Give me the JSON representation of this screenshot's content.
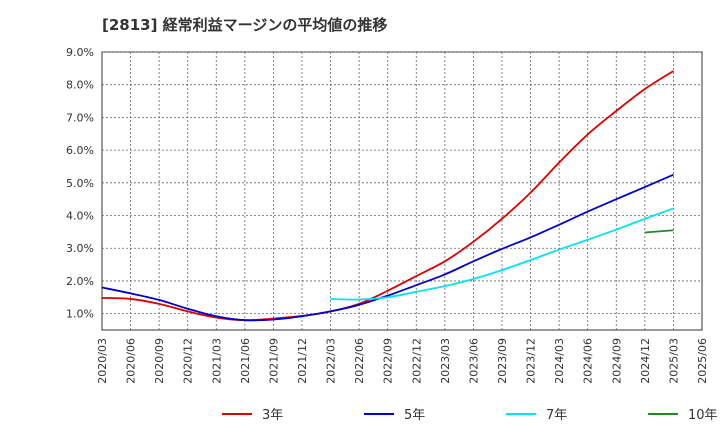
{
  "chart_data": {
    "type": "line",
    "title": "[2813]  経常利益マージンの平均値の推移",
    "xlabel": "",
    "ylabel": "",
    "y_ticks": [
      "1.0%",
      "2.0%",
      "3.0%",
      "4.0%",
      "5.0%",
      "6.0%",
      "7.0%",
      "8.0%",
      "9.0%"
    ],
    "ylim": [
      0.5,
      9.0
    ],
    "x_ticks": [
      "2020/03",
      "2020/06",
      "2020/09",
      "2020/12",
      "2021/03",
      "2021/06",
      "2021/09",
      "2021/12",
      "2022/03",
      "2022/06",
      "2022/09",
      "2022/12",
      "2023/03",
      "2023/06",
      "2023/09",
      "2023/12",
      "2024/03",
      "2024/06",
      "2024/09",
      "2024/12",
      "2025/03",
      "2025/06"
    ],
    "grid": true,
    "legend_position": "bottom",
    "series": [
      {
        "name": "3年",
        "color": "#dd0000",
        "x": [
          "2020/03",
          "2020/06",
          "2020/09",
          "2020/12",
          "2021/03",
          "2021/06",
          "2021/09",
          "2021/12",
          "2022/03",
          "2022/06",
          "2022/09",
          "2022/12",
          "2023/03",
          "2023/06",
          "2023/09",
          "2023/12",
          "2024/03",
          "2024/06",
          "2024/09",
          "2024/12",
          "2025/03"
        ],
        "values": [
          1.48,
          1.45,
          1.3,
          1.07,
          0.88,
          0.8,
          0.85,
          0.93,
          1.07,
          1.3,
          1.7,
          2.15,
          2.6,
          3.2,
          3.9,
          4.7,
          5.62,
          6.48,
          7.2,
          7.87,
          8.42
        ]
      },
      {
        "name": "5年",
        "color": "#0000cc",
        "x": [
          "2020/03",
          "2020/06",
          "2020/09",
          "2020/12",
          "2021/03",
          "2021/06",
          "2021/09",
          "2021/12",
          "2022/03",
          "2022/06",
          "2022/09",
          "2022/12",
          "2023/03",
          "2023/06",
          "2023/09",
          "2023/12",
          "2024/03",
          "2024/06",
          "2024/09",
          "2024/12",
          "2025/03"
        ],
        "values": [
          1.8,
          1.62,
          1.42,
          1.15,
          0.92,
          0.8,
          0.82,
          0.92,
          1.07,
          1.27,
          1.55,
          1.87,
          2.2,
          2.6,
          2.98,
          3.33,
          3.72,
          4.12,
          4.5,
          4.87,
          5.25
        ]
      },
      {
        "name": "7年",
        "color": "#00e5ee",
        "x": [
          "2022/03",
          "2022/06",
          "2022/09",
          "2022/12",
          "2023/03",
          "2023/06",
          "2023/09",
          "2023/12",
          "2024/03",
          "2024/06",
          "2024/09",
          "2024/12",
          "2025/03"
        ],
        "values": [
          1.45,
          1.43,
          1.5,
          1.67,
          1.84,
          2.06,
          2.33,
          2.64,
          2.96,
          3.26,
          3.57,
          3.9,
          4.22
        ]
      },
      {
        "name": "10年",
        "color": "#228b22",
        "x": [
          "2024/12",
          "2025/03"
        ],
        "values": [
          3.48,
          3.55
        ]
      }
    ]
  }
}
